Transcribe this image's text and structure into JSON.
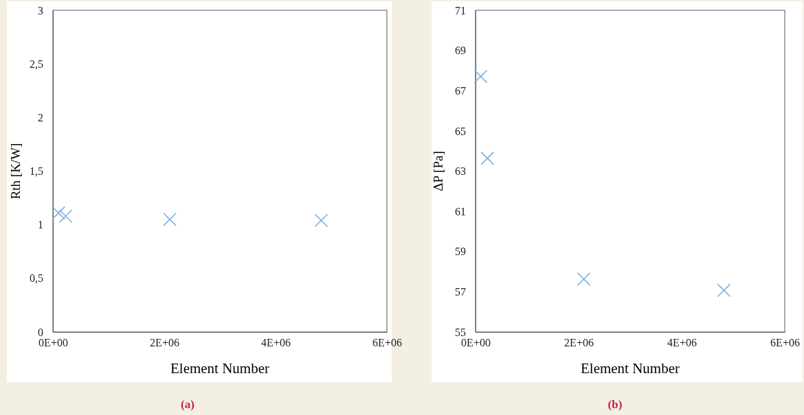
{
  "chart_data": [
    {
      "type": "scatter",
      "xlabel": "Element Number",
      "ylabel": "Rth [K/W]",
      "annotations": [
        "(a)"
      ],
      "x": [
        100000,
        230000,
        2100000,
        4820000
      ],
      "values": [
        1.11,
        1.08,
        1.05,
        1.04
      ],
      "color": "#7aaee0",
      "marker": "cross",
      "xlim": [
        0,
        6000000
      ],
      "xticks": [
        {
          "value": 0,
          "label": "0E+00"
        },
        {
          "value": 2000000,
          "label": "2E+06"
        },
        {
          "value": 4000000,
          "label": "4E+06"
        },
        {
          "value": 6000000,
          "label": "6E+06"
        }
      ],
      "ylim": [
        0,
        3
      ],
      "yticks": [
        0,
        {
          "value": 0.5,
          "label": "0,5"
        },
        1,
        {
          "value": 1.5,
          "label": "1,5"
        },
        2,
        {
          "value": 2.5,
          "label": "2,5"
        },
        3
      ],
      "grid": false
    },
    {
      "type": "scatter",
      "xlabel": "Element Number",
      "ylabel": "ΔP [Pa]",
      "annotations": [
        "(b)"
      ],
      "x": [
        100000,
        230000,
        2100000,
        4820000
      ],
      "values": [
        67.71,
        63.64,
        57.63,
        57.07
      ],
      "color": "#7aaee0",
      "marker": "cross",
      "xlim": [
        0,
        6000000
      ],
      "xticks": [
        {
          "value": 0,
          "label": "0E+00"
        },
        {
          "value": 2000000,
          "label": "2E+06"
        },
        {
          "value": 4000000,
          "label": "4E+06"
        },
        {
          "value": 6000000,
          "label": "6E+06"
        }
      ],
      "ylim": [
        55,
        71
      ],
      "yticks": [
        55,
        57,
        59,
        61,
        63,
        65,
        67,
        69,
        71
      ],
      "grid": false
    }
  ]
}
